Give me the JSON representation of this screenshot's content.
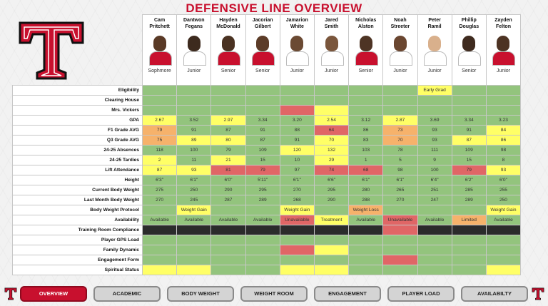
{
  "title": "DEFENSIVE LINE OVERVIEW",
  "players": [
    {
      "first": "Cam",
      "last": "Pritchett",
      "year": "Sophmore"
    },
    {
      "first": "Dantwon",
      "last": "Fegans",
      "year": "Junior"
    },
    {
      "first": "Hayden",
      "last": "McDonald",
      "year": "Senior"
    },
    {
      "first": "Jacorian",
      "last": "Gilbert",
      "year": "Senior"
    },
    {
      "first": "Jamarion",
      "last": "White",
      "year": "Junior"
    },
    {
      "first": "Jared",
      "last": "Smith",
      "year": "Junior"
    },
    {
      "first": "Nicholas",
      "last": "Alston",
      "year": "Senior"
    },
    {
      "first": "Noah",
      "last": "Streeter",
      "year": "Junior"
    },
    {
      "first": "Peter",
      "last": "Ramil",
      "year": "Junior"
    },
    {
      "first": "Phillip",
      "last": "Douglas",
      "year": "Senior"
    },
    {
      "first": "Zayden",
      "last": "Felton",
      "year": "Junior"
    }
  ],
  "rows": [
    {
      "label": "Eligibility",
      "cells": [
        [
          "",
          "g"
        ],
        [
          "",
          "g"
        ],
        [
          "",
          "g"
        ],
        [
          "",
          "g"
        ],
        [
          "",
          "g"
        ],
        [
          "",
          "g"
        ],
        [
          "",
          "g"
        ],
        [
          "",
          "g"
        ],
        [
          "Early Grad",
          "y"
        ],
        [
          "",
          "g"
        ],
        [
          "",
          "g"
        ]
      ]
    },
    {
      "label": "Clearing House",
      "cells": [
        [
          "",
          "g"
        ],
        [
          "",
          "g"
        ],
        [
          "",
          "g"
        ],
        [
          "",
          "g"
        ],
        [
          "",
          "g"
        ],
        [
          "",
          "g"
        ],
        [
          "",
          "g"
        ],
        [
          "",
          "g"
        ],
        [
          "",
          "g"
        ],
        [
          "",
          "g"
        ],
        [
          "",
          "g"
        ]
      ]
    },
    {
      "label": "Mrs. Vickers",
      "cells": [
        [
          "",
          "g"
        ],
        [
          "",
          "g"
        ],
        [
          "",
          "g"
        ],
        [
          "",
          "g"
        ],
        [
          "",
          "r"
        ],
        [
          "",
          "y"
        ],
        [
          "",
          "g"
        ],
        [
          "",
          "g"
        ],
        [
          "",
          "g"
        ],
        [
          "",
          "g"
        ],
        [
          "",
          "g"
        ]
      ]
    },
    {
      "label": "GPA",
      "cells": [
        [
          "2.67",
          "y"
        ],
        [
          "3.52",
          "g"
        ],
        [
          "2.97",
          "y"
        ],
        [
          "3.34",
          "g"
        ],
        [
          "3.20",
          "g"
        ],
        [
          "2.54",
          "y"
        ],
        [
          "3.12",
          "g"
        ],
        [
          "2.87",
          "y"
        ],
        [
          "3.69",
          "g"
        ],
        [
          "3.34",
          "g"
        ],
        [
          "3.23",
          "g"
        ]
      ]
    },
    {
      "label": "F1 Grade AVG",
      "cells": [
        [
          "79",
          "o"
        ],
        [
          "91",
          "g"
        ],
        [
          "87",
          "g"
        ],
        [
          "91",
          "g"
        ],
        [
          "88",
          "g"
        ],
        [
          "64",
          "r"
        ],
        [
          "86",
          "g"
        ],
        [
          "73",
          "o"
        ],
        [
          "93",
          "g"
        ],
        [
          "91",
          "g"
        ],
        [
          "84",
          "y"
        ]
      ]
    },
    {
      "label": "Q3 Grade AVG",
      "cells": [
        [
          "75",
          "o"
        ],
        [
          "89",
          "y"
        ],
        [
          "80",
          "y"
        ],
        [
          "87",
          "g"
        ],
        [
          "91",
          "g"
        ],
        [
          "70",
          "y"
        ],
        [
          "83",
          "g"
        ],
        [
          "70",
          "o"
        ],
        [
          "93",
          "g"
        ],
        [
          "87",
          "y"
        ],
        [
          "86",
          "y"
        ]
      ]
    },
    {
      "label": "24-25 Absences",
      "cells": [
        [
          "118",
          "g"
        ],
        [
          "100",
          "g"
        ],
        [
          "79",
          "g"
        ],
        [
          "109",
          "g"
        ],
        [
          "120",
          "y"
        ],
        [
          "132",
          "y"
        ],
        [
          "103",
          "g"
        ],
        [
          "78",
          "g"
        ],
        [
          "111",
          "g"
        ],
        [
          "109",
          "g"
        ],
        [
          "98",
          "g"
        ]
      ]
    },
    {
      "label": "24-25 Tardies",
      "cells": [
        [
          "2",
          "y"
        ],
        [
          "11",
          "g"
        ],
        [
          "21",
          "y"
        ],
        [
          "15",
          "g"
        ],
        [
          "10",
          "g"
        ],
        [
          "29",
          "y"
        ],
        [
          "1",
          "g"
        ],
        [
          "5",
          "g"
        ],
        [
          "9",
          "g"
        ],
        [
          "15",
          "g"
        ],
        [
          "8",
          "g"
        ]
      ]
    },
    {
      "label": "Lift Attendance",
      "cells": [
        [
          "87",
          "y"
        ],
        [
          "93",
          "y"
        ],
        [
          "81",
          "r"
        ],
        [
          "79",
          "r"
        ],
        [
          "97",
          "g"
        ],
        [
          "74",
          "r"
        ],
        [
          "68",
          "r"
        ],
        [
          "98",
          "g"
        ],
        [
          "100",
          "g"
        ],
        [
          "79",
          "r"
        ],
        [
          "93",
          "y"
        ]
      ]
    },
    {
      "label": "Height",
      "cells": [
        [
          "6'3\"",
          "g"
        ],
        [
          "6'1\"",
          "g"
        ],
        [
          "6'0\"",
          "g"
        ],
        [
          "5'11\"",
          "g"
        ],
        [
          "6'1\"",
          "g"
        ],
        [
          "6'6\"",
          "g"
        ],
        [
          "6'1\"",
          "g"
        ],
        [
          "6'1\"",
          "g"
        ],
        [
          "6'4\"",
          "g"
        ],
        [
          "6'2\"",
          "g"
        ],
        [
          "6'0\"",
          "g"
        ]
      ]
    },
    {
      "label": "Current Body Weight",
      "cells": [
        [
          "275",
          "g"
        ],
        [
          "250",
          "g"
        ],
        [
          "290",
          "g"
        ],
        [
          "295",
          "g"
        ],
        [
          "270",
          "g"
        ],
        [
          "295",
          "g"
        ],
        [
          "280",
          "g"
        ],
        [
          "265",
          "g"
        ],
        [
          "251",
          "g"
        ],
        [
          "285",
          "g"
        ],
        [
          "255",
          "g"
        ]
      ]
    },
    {
      "label": "Last Month Body Weight",
      "cells": [
        [
          "270",
          "g"
        ],
        [
          "245",
          "g"
        ],
        [
          "287",
          "g"
        ],
        [
          "289",
          "g"
        ],
        [
          "268",
          "g"
        ],
        [
          "290",
          "g"
        ],
        [
          "288",
          "g"
        ],
        [
          "270",
          "g"
        ],
        [
          "247",
          "g"
        ],
        [
          "289",
          "g"
        ],
        [
          "250",
          "g"
        ]
      ]
    },
    {
      "label": "Body Weight Protocol",
      "cells": [
        [
          "",
          "g"
        ],
        [
          "Weight Gain",
          "y"
        ],
        [
          "",
          "g"
        ],
        [
          "",
          "g"
        ],
        [
          "Weight Gain",
          "y"
        ],
        [
          "",
          "g"
        ],
        [
          "Weight Loss",
          "o"
        ],
        [
          "",
          "g"
        ],
        [
          "",
          "g"
        ],
        [
          "",
          "g"
        ],
        [
          "Weight Gain",
          "y"
        ]
      ]
    },
    {
      "label": "Availability",
      "cells": [
        [
          "Available",
          "g"
        ],
        [
          "Available",
          "g"
        ],
        [
          "Available",
          "g"
        ],
        [
          "Available",
          "g"
        ],
        [
          "Unavailable",
          "r"
        ],
        [
          "Treatment",
          "y"
        ],
        [
          "Available",
          "g"
        ],
        [
          "Unavailable",
          "r"
        ],
        [
          "Available",
          "g"
        ],
        [
          "Limited",
          "o"
        ],
        [
          "Available",
          "g"
        ]
      ]
    },
    {
      "label": "Training Room Compliance",
      "cells": [
        [
          "",
          "k"
        ],
        [
          "",
          "k"
        ],
        [
          "",
          "k"
        ],
        [
          "",
          "k"
        ],
        [
          "",
          "k"
        ],
        [
          "",
          "k"
        ],
        [
          "",
          "k"
        ],
        [
          "",
          "r"
        ],
        [
          "",
          "k"
        ],
        [
          "",
          "k"
        ],
        [
          "",
          "k"
        ]
      ]
    },
    {
      "label": "Player GPS Load",
      "cells": [
        [
          "",
          "g"
        ],
        [
          "",
          "g"
        ],
        [
          "",
          "g"
        ],
        [
          "",
          "g"
        ],
        [
          "",
          "g"
        ],
        [
          "",
          "g"
        ],
        [
          "",
          "g"
        ],
        [
          "",
          "g"
        ],
        [
          "",
          "g"
        ],
        [
          "",
          "g"
        ],
        [
          "",
          "g"
        ]
      ]
    },
    {
      "label": "Family Dynamic",
      "cells": [
        [
          "",
          "g"
        ],
        [
          "",
          "g"
        ],
        [
          "",
          "g"
        ],
        [
          "",
          "g"
        ],
        [
          "",
          "r"
        ],
        [
          "",
          "y"
        ],
        [
          "",
          "g"
        ],
        [
          "",
          "g"
        ],
        [
          "",
          "g"
        ],
        [
          "",
          "g"
        ],
        [
          "",
          "g"
        ]
      ]
    },
    {
      "label": "Engagement Form",
      "cells": [
        [
          "",
          "g"
        ],
        [
          "",
          "g"
        ],
        [
          "",
          "g"
        ],
        [
          "",
          "g"
        ],
        [
          "",
          "g"
        ],
        [
          "",
          "g"
        ],
        [
          "",
          "g"
        ],
        [
          "",
          "r"
        ],
        [
          "",
          "g"
        ],
        [
          "",
          "g"
        ],
        [
          "",
          "g"
        ]
      ]
    },
    {
      "label": "Spiritual Status",
      "cells": [
        [
          "",
          "y"
        ],
        [
          "",
          "y"
        ],
        [
          "",
          "g"
        ],
        [
          "",
          "g"
        ],
        [
          "",
          "y"
        ],
        [
          "",
          "y"
        ],
        [
          "",
          "g"
        ],
        [
          "",
          "g"
        ],
        [
          "",
          "g"
        ],
        [
          "",
          "g"
        ],
        [
          "",
          "y"
        ]
      ]
    }
  ],
  "nav": [
    "OVERVIEW",
    "ACADEMIC",
    "BODY WEIGHT",
    "WEIGHT ROOM",
    "ENGAGEMENT",
    "PLAYER LOAD",
    "AVAILABILTY"
  ],
  "active_nav": "OVERVIEW",
  "logo_letter": "T",
  "colors": {
    "brand": "#c8102e",
    "green": "#93c47d",
    "yellow": "#ffff66",
    "red": "#e06666",
    "orange": "#f6b26b",
    "black": "#2b2b2b"
  }
}
